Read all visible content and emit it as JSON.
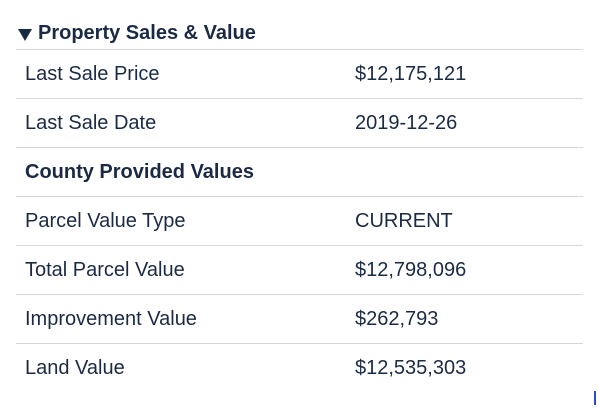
{
  "section": {
    "title": "Property Sales & Value",
    "expanded_icon": "triangle-down-icon"
  },
  "rows": [
    {
      "label": "Last Sale Price",
      "value": "$12,175,121"
    },
    {
      "label": "Last Sale Date",
      "value": "2019-12-26"
    },
    {
      "label": "County Provided Values",
      "value": ""
    },
    {
      "label": "Parcel Value Type",
      "value": "CURRENT"
    },
    {
      "label": "Total Parcel Value",
      "value": "$12,798,096"
    },
    {
      "label": "Improvement Value",
      "value": "$262,793"
    },
    {
      "label": "Land Value",
      "value": "$12,535,303"
    }
  ],
  "colors": {
    "text": "#1b2a44",
    "divider": "#d6d6d6",
    "cursor": "#2a4bd7"
  }
}
